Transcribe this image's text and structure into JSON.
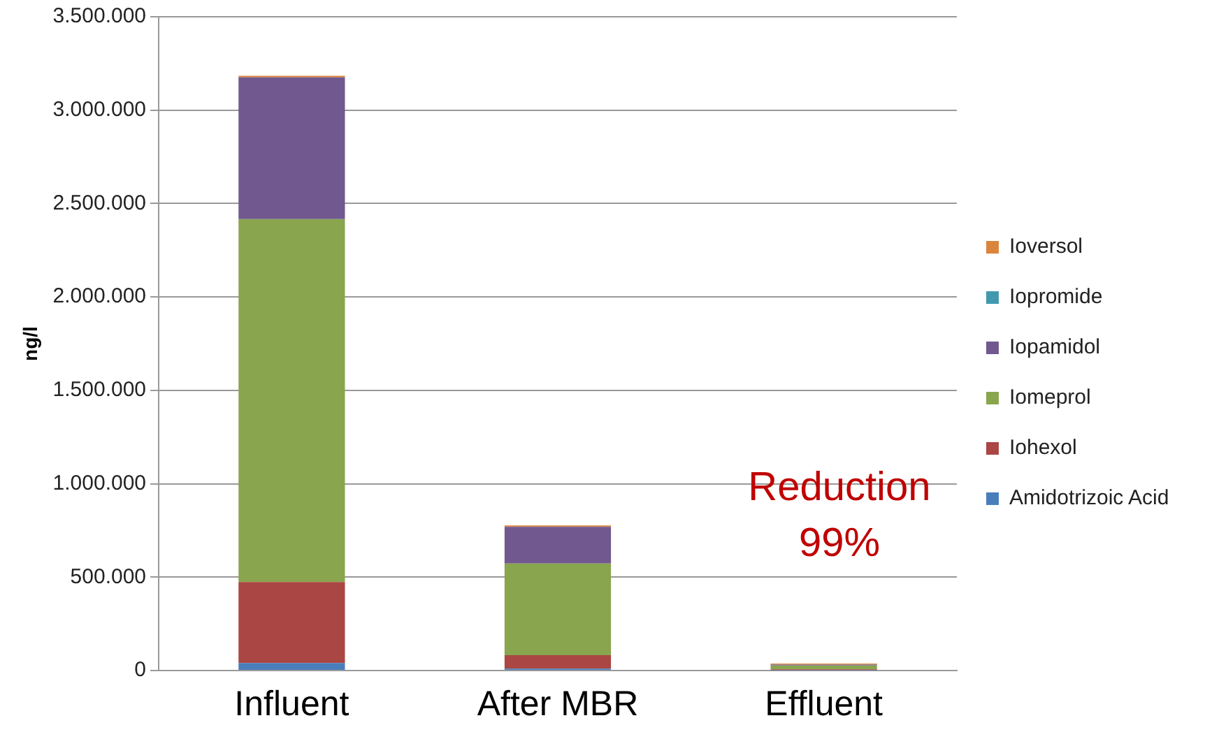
{
  "chart_data": {
    "type": "bar",
    "stacked": true,
    "ylabel": "ng/l",
    "categories": [
      "Influent",
      "After MBR",
      "Effluent"
    ],
    "series": [
      {
        "name": "Amidotrizoic Acid",
        "color": "#4a7ebb",
        "values": [
          40000,
          10000,
          2000
        ]
      },
      {
        "name": "Iohexol",
        "color": "#aa4643",
        "values": [
          434000,
          72000,
          5000
        ]
      },
      {
        "name": "Iomeprol",
        "color": "#89a54e",
        "values": [
          1943000,
          491000,
          20000
        ]
      },
      {
        "name": "Iopamidol",
        "color": "#71588f",
        "values": [
          759000,
          196000,
          5000
        ]
      },
      {
        "name": "Iopromide",
        "color": "#4198af",
        "values": [
          0,
          0,
          0
        ]
      },
      {
        "name": "Ioversol",
        "color": "#db843d",
        "values": [
          8000,
          8000,
          5000
        ]
      }
    ],
    "ylim": [
      0,
      3500000
    ],
    "yticks": [
      {
        "value": 0,
        "label": "0"
      },
      {
        "value": 500000,
        "label": "500.000"
      },
      {
        "value": 1000000,
        "label": "1.000.000"
      },
      {
        "value": 1500000,
        "label": "1.500.000"
      },
      {
        "value": 2000000,
        "label": "2.000.000"
      },
      {
        "value": 2500000,
        "label": "2.500.000"
      },
      {
        "value": 3000000,
        "label": "3.000.000"
      },
      {
        "value": 3500000,
        "label": "3.500.000"
      }
    ],
    "grid": "y",
    "legend": "right",
    "annotations": [
      "Reduction\n99%"
    ]
  }
}
